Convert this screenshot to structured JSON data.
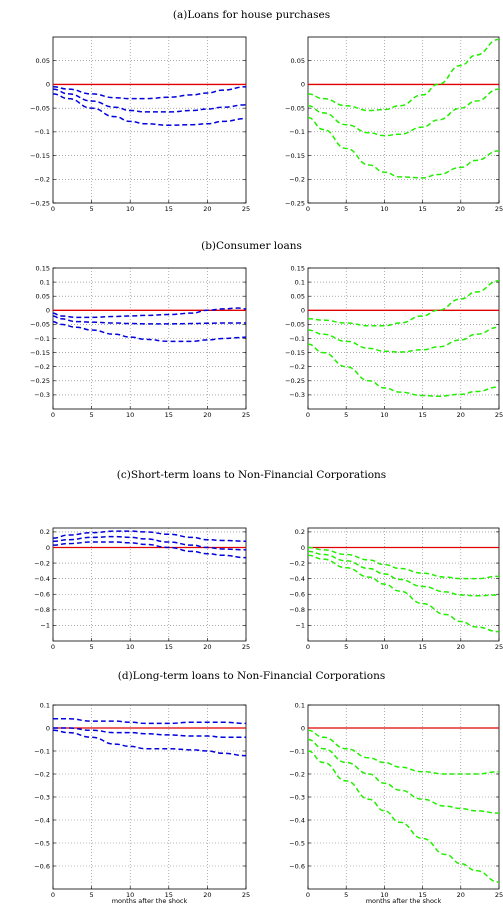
{
  "chart_data": [
    {
      "type": "line",
      "title": "(a)Loans for house purchases",
      "xticks": [
        0,
        5,
        10,
        15,
        20,
        25
      ],
      "xlabel": "",
      "xlim": [
        0,
        25
      ],
      "ylim": [
        -0.25,
        0.1
      ],
      "yticks": [
        0.05,
        0,
        -0.05,
        -0.1,
        -0.15,
        -0.2,
        -0.25
      ],
      "ytick_labels": [
        "0.05",
        "0",
        "−0.05",
        "−0.1",
        "−0.15",
        "−0.2",
        "−0.25"
      ],
      "grid": true,
      "left": {
        "color": "#0000dd",
        "x": [
          0,
          2,
          5,
          8,
          10,
          12,
          15,
          18,
          20,
          22,
          25
        ],
        "series": [
          {
            "values": [
              -0.005,
              -0.01,
              -0.02,
              -0.028,
              -0.03,
              -0.03,
              -0.027,
              -0.022,
              -0.018,
              -0.012,
              -0.005
            ]
          },
          {
            "values": [
              -0.01,
              -0.02,
              -0.035,
              -0.048,
              -0.055,
              -0.058,
              -0.058,
              -0.055,
              -0.052,
              -0.048,
              -0.043
            ]
          },
          {
            "values": [
              -0.02,
              -0.03,
              -0.05,
              -0.068,
              -0.078,
              -0.083,
              -0.086,
              -0.085,
              -0.083,
              -0.078,
              -0.072
            ]
          }
        ],
        "zero_line": 0
      },
      "right": {
        "color": "#22ee00",
        "x": [
          0,
          2,
          5,
          8,
          10,
          12,
          15,
          17,
          20,
          22,
          25
        ],
        "series": [
          {
            "values": [
              -0.02,
              -0.03,
              -0.045,
              -0.055,
              -0.053,
              -0.045,
              -0.022,
              0.0,
              0.04,
              0.062,
              0.095
            ]
          },
          {
            "values": [
              -0.045,
              -0.06,
              -0.085,
              -0.102,
              -0.108,
              -0.105,
              -0.09,
              -0.075,
              -0.05,
              -0.035,
              -0.01
            ]
          },
          {
            "values": [
              -0.07,
              -0.095,
              -0.135,
              -0.17,
              -0.185,
              -0.195,
              -0.197,
              -0.19,
              -0.175,
              -0.16,
              -0.14
            ]
          }
        ],
        "zero_line": 0
      }
    },
    {
      "type": "line",
      "title": "(b)Consumer loans",
      "xticks": [
        0,
        5,
        10,
        15,
        20,
        25
      ],
      "xlabel": "",
      "xlim": [
        0,
        25
      ],
      "ylim": [
        -0.35,
        0.15
      ],
      "yticks": [
        0.15,
        0.1,
        0.05,
        0,
        -0.05,
        -0.1,
        -0.15,
        -0.2,
        -0.25,
        -0.3
      ],
      "ytick_labels": [
        "0.15",
        "0.1",
        "0.05",
        "0",
        "−0.05",
        "−0.1",
        "−0.15",
        "−0.2",
        "−0.25",
        "−0.3"
      ],
      "grid": true,
      "left": {
        "color": "#0000dd",
        "x": [
          0,
          1,
          3,
          5,
          8,
          10,
          12,
          15,
          18,
          20,
          22,
          24,
          25
        ],
        "series": [
          {
            "values": [
              -0.01,
              -0.02,
              -0.025,
              -0.025,
              -0.022,
              -0.02,
              -0.018,
              -0.015,
              -0.01,
              0.0,
              0.005,
              0.008,
              0.005
            ]
          },
          {
            "values": [
              -0.02,
              -0.03,
              -0.04,
              -0.042,
              -0.045,
              -0.047,
              -0.048,
              -0.048,
              -0.047,
              -0.046,
              -0.045,
              -0.045,
              -0.045
            ]
          },
          {
            "values": [
              -0.04,
              -0.05,
              -0.06,
              -0.07,
              -0.085,
              -0.095,
              -0.103,
              -0.11,
              -0.11,
              -0.105,
              -0.1,
              -0.097,
              -0.095
            ]
          }
        ],
        "zero_line": 0
      },
      "right": {
        "color": "#22ee00",
        "x": [
          0,
          2,
          5,
          8,
          10,
          12,
          15,
          17,
          20,
          22,
          25
        ],
        "series": [
          {
            "values": [
              -0.03,
              -0.035,
              -0.045,
              -0.055,
              -0.055,
              -0.045,
              -0.02,
              0.0,
              0.04,
              0.065,
              0.105
            ]
          },
          {
            "values": [
              -0.07,
              -0.085,
              -0.11,
              -0.135,
              -0.145,
              -0.148,
              -0.14,
              -0.13,
              -0.105,
              -0.085,
              -0.06
            ]
          },
          {
            "values": [
              -0.12,
              -0.15,
              -0.2,
              -0.25,
              -0.275,
              -0.29,
              -0.302,
              -0.305,
              -0.298,
              -0.288,
              -0.272
            ]
          }
        ],
        "zero_line": 0
      }
    },
    {
      "type": "line",
      "title": "(c)Short-term loans to Non-Financial Corporations",
      "xticks": [
        0,
        5,
        10,
        15,
        20,
        25
      ],
      "xlabel": "",
      "xlim": [
        0,
        25
      ],
      "ylim": [
        -1.2,
        0.25
      ],
      "yticks": [
        0.2,
        0,
        -0.2,
        -0.4,
        -0.6,
        -0.8,
        -1
      ],
      "ytick_labels": [
        "0.2",
        "0",
        "−0.2",
        "−0.4",
        "−0.6",
        "−0.8",
        "−1"
      ],
      "grid": true,
      "left": {
        "color": "#0000dd",
        "x": [
          0,
          2,
          5,
          8,
          10,
          12,
          15,
          18,
          20,
          22,
          25
        ],
        "series": [
          {
            "values": [
              0.12,
              0.16,
              0.19,
              0.21,
              0.21,
              0.2,
              0.17,
              0.13,
              0.1,
              0.09,
              0.08
            ]
          },
          {
            "values": [
              0.08,
              0.1,
              0.13,
              0.14,
              0.13,
              0.11,
              0.07,
              0.03,
              0.0,
              -0.02,
              -0.03
            ]
          },
          {
            "values": [
              0.03,
              0.05,
              0.07,
              0.07,
              0.06,
              0.04,
              0.0,
              -0.05,
              -0.08,
              -0.1,
              -0.13
            ]
          }
        ],
        "zero_line": 0
      },
      "right": {
        "color": "#22ee00",
        "x": [
          0,
          2,
          5,
          8,
          10,
          12,
          15,
          18,
          20,
          22,
          25
        ],
        "series": [
          {
            "values": [
              0.0,
              -0.03,
              -0.09,
              -0.16,
              -0.22,
              -0.27,
              -0.33,
              -0.38,
              -0.4,
              -0.4,
              -0.37
            ]
          },
          {
            "values": [
              -0.05,
              -0.09,
              -0.17,
              -0.27,
              -0.34,
              -0.41,
              -0.5,
              -0.57,
              -0.61,
              -0.62,
              -0.61
            ]
          },
          {
            "values": [
              -0.1,
              -0.15,
              -0.26,
              -0.38,
              -0.47,
              -0.56,
              -0.72,
              -0.86,
              -0.95,
              -1.02,
              -1.08
            ]
          }
        ],
        "zero_line": 0
      }
    },
    {
      "type": "line",
      "title": "(d)Long-term loans to Non-Financial Corporations",
      "xticks": [
        0,
        5,
        10,
        15,
        20,
        25
      ],
      "xlabel": "months after the shock",
      "xlim": [
        0,
        25
      ],
      "ylim": [
        -0.7,
        0.1
      ],
      "yticks": [
        0.1,
        0,
        -0.1,
        -0.2,
        -0.3,
        -0.4,
        -0.5,
        -0.6
      ],
      "ytick_labels": [
        "0.1",
        "0",
        "−0.1",
        "−0.2",
        "−0.3",
        "−0.4",
        "−0.5",
        "−0.6"
      ],
      "grid": true,
      "left": {
        "color": "#0000dd",
        "x": [
          0,
          2,
          5,
          8,
          10,
          12,
          15,
          18,
          20,
          22,
          25
        ],
        "series": [
          {
            "values": [
              0.04,
              0.04,
              0.03,
              0.03,
              0.025,
              0.02,
              0.02,
              0.025,
              0.025,
              0.025,
              0.02
            ]
          },
          {
            "values": [
              0.0,
              0.0,
              -0.01,
              -0.02,
              -0.02,
              -0.025,
              -0.03,
              -0.035,
              -0.035,
              -0.04,
              -0.04
            ]
          },
          {
            "values": [
              -0.01,
              -0.02,
              -0.04,
              -0.07,
              -0.08,
              -0.09,
              -0.09,
              -0.095,
              -0.1,
              -0.11,
              -0.12
            ]
          }
        ],
        "zero_line": 0
      },
      "right": {
        "color": "#22ee00",
        "x": [
          0,
          2,
          5,
          8,
          10,
          12,
          15,
          18,
          20,
          22,
          25
        ],
        "series": [
          {
            "values": [
              -0.01,
              -0.04,
              -0.09,
              -0.13,
              -0.15,
              -0.17,
              -0.19,
              -0.2,
              -0.2,
              -0.2,
              -0.19
            ]
          },
          {
            "values": [
              -0.05,
              -0.09,
              -0.15,
              -0.2,
              -0.24,
              -0.27,
              -0.31,
              -0.34,
              -0.35,
              -0.36,
              -0.37
            ]
          },
          {
            "values": [
              -0.1,
              -0.15,
              -0.23,
              -0.31,
              -0.36,
              -0.41,
              -0.48,
              -0.55,
              -0.59,
              -0.62,
              -0.67
            ]
          }
        ],
        "zero_line": 0
      }
    }
  ]
}
